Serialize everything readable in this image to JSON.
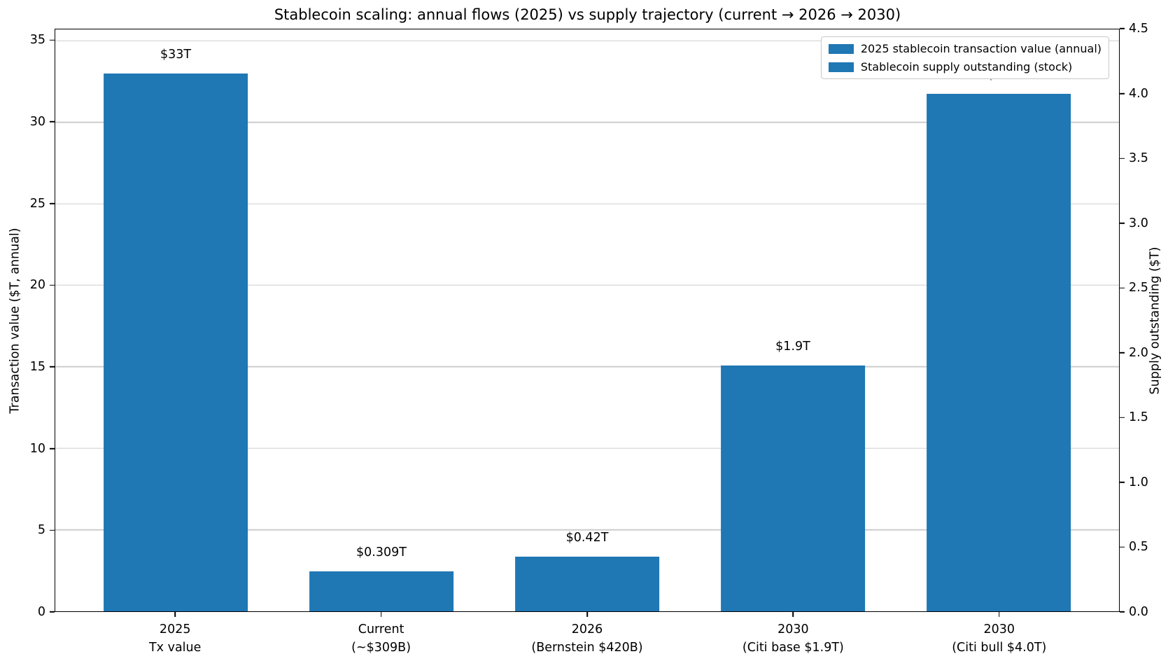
{
  "chart_data": {
    "type": "bar",
    "title": "Stablecoin scaling: annual flows (2025) vs supply trajectory (current → 2026 → 2030)",
    "ylabel_left": "Transaction value ($T, annual)",
    "ylabel_right": "Supply outstanding ($T)",
    "bar_color": "#1f77b4",
    "grid_color": "#cccccc",
    "grid": true,
    "left_axis": {
      "max": 35.7,
      "tick_labels": [
        "0",
        "5",
        "10",
        "15",
        "20",
        "25",
        "30",
        "35"
      ]
    },
    "right_axis": {
      "max": 4.5,
      "tick_labels": [
        "0.0",
        "0.5",
        "1.0",
        "1.5",
        "2.0",
        "2.5",
        "3.0",
        "3.5",
        "4.0",
        "4.5"
      ]
    },
    "categories": [
      {
        "label_line1": "2025",
        "label_line2": "Tx value",
        "value": 33,
        "axis": "left",
        "value_label": "$33T"
      },
      {
        "label_line1": "Current",
        "label_line2": "(~$309B)",
        "value": 0.309,
        "axis": "right",
        "value_label": "$0.309T"
      },
      {
        "label_line1": "2026",
        "label_line2": "(Bernstein $420B)",
        "value": 0.42,
        "axis": "right",
        "value_label": "$0.42T"
      },
      {
        "label_line1": "2030",
        "label_line2": "(Citi base $1.9T)",
        "value": 1.9,
        "axis": "right",
        "value_label": "$1.9T"
      },
      {
        "label_line1": "2030",
        "label_line2": "(Citi bull $4.0T)",
        "value": 4.0,
        "axis": "right",
        "value_label": "$4T"
      }
    ],
    "legend": {
      "position": "upper right",
      "entries": [
        {
          "label": "2025 stablecoin transaction value (annual)",
          "color": "#1f77b4"
        },
        {
          "label": "Stablecoin supply outstanding (stock)",
          "color": "#1f77b4"
        }
      ]
    }
  }
}
